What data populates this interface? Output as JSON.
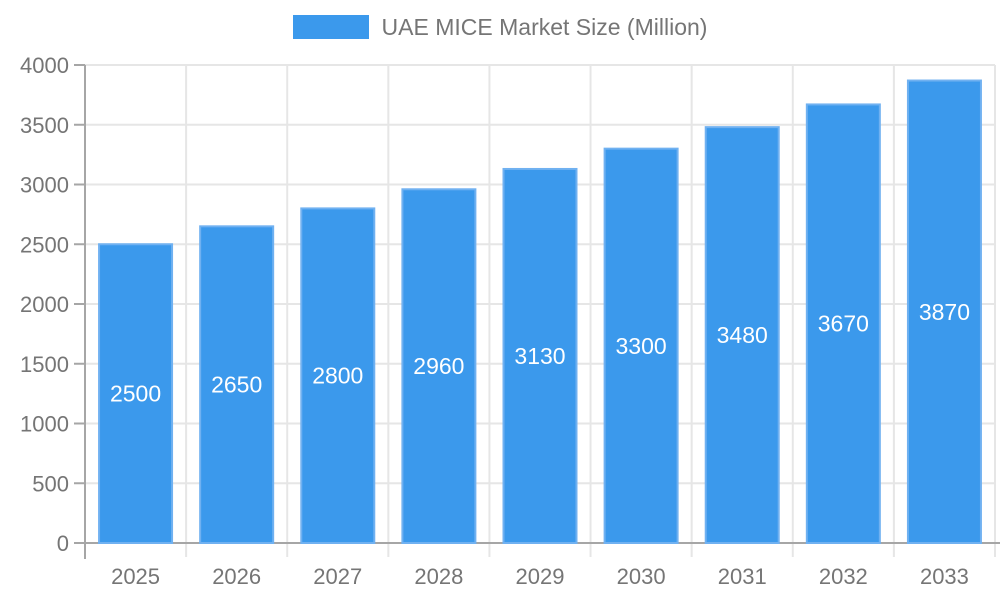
{
  "legend": {
    "label": "UAE MICE Market Size (Million)"
  },
  "chart_data": {
    "type": "bar",
    "title": "UAE MICE Market Size (Million)",
    "series_name": "UAE MICE Market Size (Million)",
    "categories": [
      "2025",
      "2026",
      "2027",
      "2028",
      "2029",
      "2030",
      "2031",
      "2032",
      "2033"
    ],
    "values": [
      2500,
      2650,
      2800,
      2960,
      3130,
      3300,
      3480,
      3670,
      3870
    ],
    "xlabel": "",
    "ylabel": "",
    "ylim": [
      0,
      4000
    ],
    "ytick_interval": 500,
    "yticks": [
      0,
      500,
      1000,
      1500,
      2000,
      2500,
      3000,
      3500,
      4000
    ],
    "grid": true,
    "legend_position": "top",
    "value_labels_position": "inside-center",
    "colors": {
      "bar_fill": "#3B99EC",
      "bar_border": "#70B1F1",
      "value_label": "#FFFFFF",
      "axis_text": "#757575",
      "legend_text": "#757575",
      "grid_line": "#E6E6E6",
      "axis_line": "#A6A6A6"
    }
  }
}
